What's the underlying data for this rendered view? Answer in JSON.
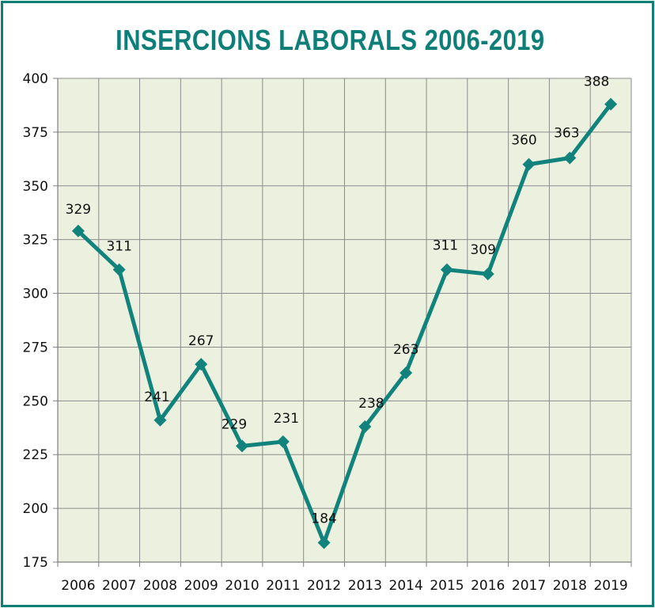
{
  "chart_data": {
    "type": "line",
    "title": "INSERCIONS LABORALS 2006-2019",
    "xlabel": "",
    "ylabel": "",
    "categories": [
      "2006",
      "2007",
      "2008",
      "2009",
      "2010",
      "2011",
      "2012",
      "2013",
      "2014",
      "2015",
      "2016",
      "2017",
      "2018",
      "2019"
    ],
    "series": [
      {
        "values": [
          329,
          311,
          241,
          267,
          229,
          231,
          184,
          238,
          263,
          311,
          309,
          360,
          363,
          388
        ]
      }
    ],
    "ylim": [
      175,
      400
    ],
    "yticks": [
      175,
      200,
      225,
      250,
      275,
      300,
      325,
      350,
      375,
      400
    ],
    "grid": true,
    "data_labels": true,
    "colors": {
      "line": "#11837c",
      "plot_bg": "#ebf1de",
      "frame": "#0e7f78",
      "title": "#0e7f78",
      "grid": "#8c8c8c"
    },
    "marker": "diamond"
  }
}
